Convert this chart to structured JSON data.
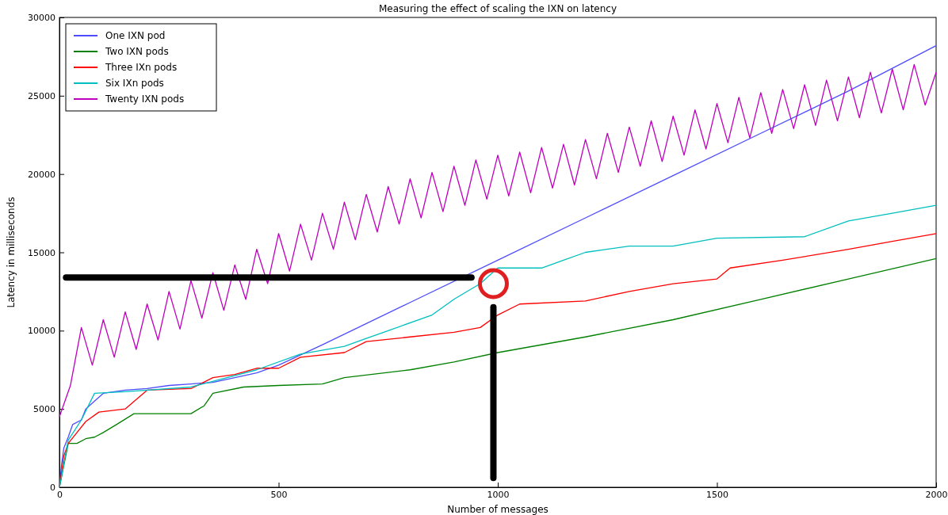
{
  "chart_data": {
    "type": "line",
    "title": "Measuring the effect of scaling the IXN on latency",
    "xlabel": "Number of messages",
    "ylabel": "Latency in milliseconds",
    "xlim": [
      0,
      2000
    ],
    "xticks": [
      0,
      500,
      1000,
      1500,
      2000
    ],
    "ylim": [
      0,
      30000
    ],
    "yticks": [
      0,
      5000,
      10000,
      15000,
      20000,
      25000,
      30000
    ],
    "grid": false,
    "legend": "top left",
    "marker": "none",
    "line_style": "solid",
    "series": [
      {
        "name": "One IXN pod",
        "color": "#4d4dff",
        "x": [
          0,
          5,
          10,
          20,
          30,
          50,
          60,
          80,
          100,
          150,
          200,
          250,
          300,
          350,
          400,
          450,
          500,
          600,
          800,
          1000,
          1200,
          1400,
          1600,
          1800,
          2000
        ],
        "values": [
          0,
          1500,
          2500,
          3200,
          4000,
          4300,
          5000,
          5500,
          6000,
          6200,
          6300,
          6500,
          6600,
          6700,
          7000,
          7300,
          7800,
          9100,
          11800,
          14500,
          17200,
          19900,
          22600,
          25300,
          28200
        ]
      },
      {
        "name": "Two IXN pods",
        "color": "#008000",
        "x": [
          0,
          20,
          40,
          60,
          80,
          100,
          130,
          170,
          300,
          330,
          350,
          420,
          500,
          600,
          650,
          800,
          900,
          1000,
          1200,
          1400,
          1600,
          1800,
          2000
        ],
        "values": [
          0,
          2800,
          2800,
          3100,
          3200,
          3500,
          4000,
          4700,
          4700,
          5200,
          6000,
          6400,
          6500,
          6600,
          7000,
          7500,
          8000,
          8600,
          9600,
          10700,
          12000,
          13300,
          14600
        ]
      },
      {
        "name": "Three IXn pods",
        "color": "#ff0000",
        "x": [
          0,
          10,
          20,
          40,
          60,
          90,
          150,
          200,
          300,
          350,
          400,
          450,
          500,
          550,
          650,
          700,
          800,
          900,
          960,
          1000,
          1050,
          1200,
          1300,
          1400,
          1500,
          1530,
          1650,
          1800,
          1900,
          2000
        ],
        "values": [
          0,
          2000,
          2800,
          3500,
          4200,
          4800,
          5000,
          6200,
          6300,
          7000,
          7200,
          7600,
          7600,
          8300,
          8600,
          9300,
          9600,
          9900,
          10200,
          11000,
          11700,
          11900,
          12500,
          13000,
          13300,
          14000,
          14500,
          15200,
          15700,
          16200
        ]
      },
      {
        "name": "Six IXn pods",
        "color": "#00bfbf",
        "x": [
          0,
          10,
          20,
          50,
          80,
          150,
          300,
          450,
          550,
          650,
          700,
          750,
          850,
          900,
          960,
          1000,
          1100,
          1150,
          1200,
          1300,
          1400,
          1500,
          1700,
          1800,
          1900,
          2000
        ],
        "values": [
          0,
          1500,
          3000,
          4300,
          6000,
          6100,
          6400,
          7500,
          8500,
          9000,
          9500,
          10000,
          11000,
          12000,
          13000,
          14000,
          14000,
          14500,
          15000,
          15400,
          15400,
          15900,
          16000,
          17000,
          17500,
          18000
        ]
      },
      {
        "name": "Twenty IXN pods",
        "color": "#bf00bf",
        "x": [
          0,
          25,
          50,
          75,
          100,
          125,
          150,
          175,
          200,
          225,
          250,
          275,
          300,
          325,
          350,
          375,
          400,
          425,
          450,
          475,
          500,
          525,
          550,
          575,
          600,
          625,
          650,
          675,
          700,
          725,
          750,
          775,
          800,
          825,
          850,
          875,
          900,
          925,
          950,
          975,
          1000,
          1025,
          1050,
          1075,
          1100,
          1125,
          1150,
          1175,
          1200,
          1225,
          1250,
          1275,
          1300,
          1325,
          1350,
          1375,
          1400,
          1425,
          1450,
          1475,
          1500,
          1525,
          1550,
          1575,
          1600,
          1625,
          1650,
          1675,
          1700,
          1725,
          1750,
          1775,
          1800,
          1825,
          1850,
          1875,
          1900,
          1925,
          1950,
          1975,
          2000
        ],
        "values": [
          4500,
          6500,
          10200,
          7800,
          10700,
          8300,
          11200,
          8800,
          11700,
          9400,
          12500,
          10100,
          13200,
          10800,
          13700,
          11300,
          14200,
          12000,
          15200,
          13000,
          16200,
          13800,
          16800,
          14500,
          17500,
          15200,
          18200,
          15800,
          18700,
          16300,
          19200,
          16800,
          19700,
          17200,
          20100,
          17600,
          20500,
          18000,
          20900,
          18400,
          21200,
          18600,
          21400,
          18800,
          21700,
          19100,
          21900,
          19300,
          22200,
          19700,
          22600,
          20100,
          23000,
          20500,
          23400,
          20800,
          23700,
          21200,
          24100,
          21600,
          24500,
          22000,
          24900,
          22300,
          25200,
          22600,
          25400,
          22900,
          25700,
          23100,
          26000,
          23400,
          26200,
          23600,
          26500,
          23900,
          26700,
          24100,
          27000,
          24400,
          26500
        ]
      }
    ]
  }
}
